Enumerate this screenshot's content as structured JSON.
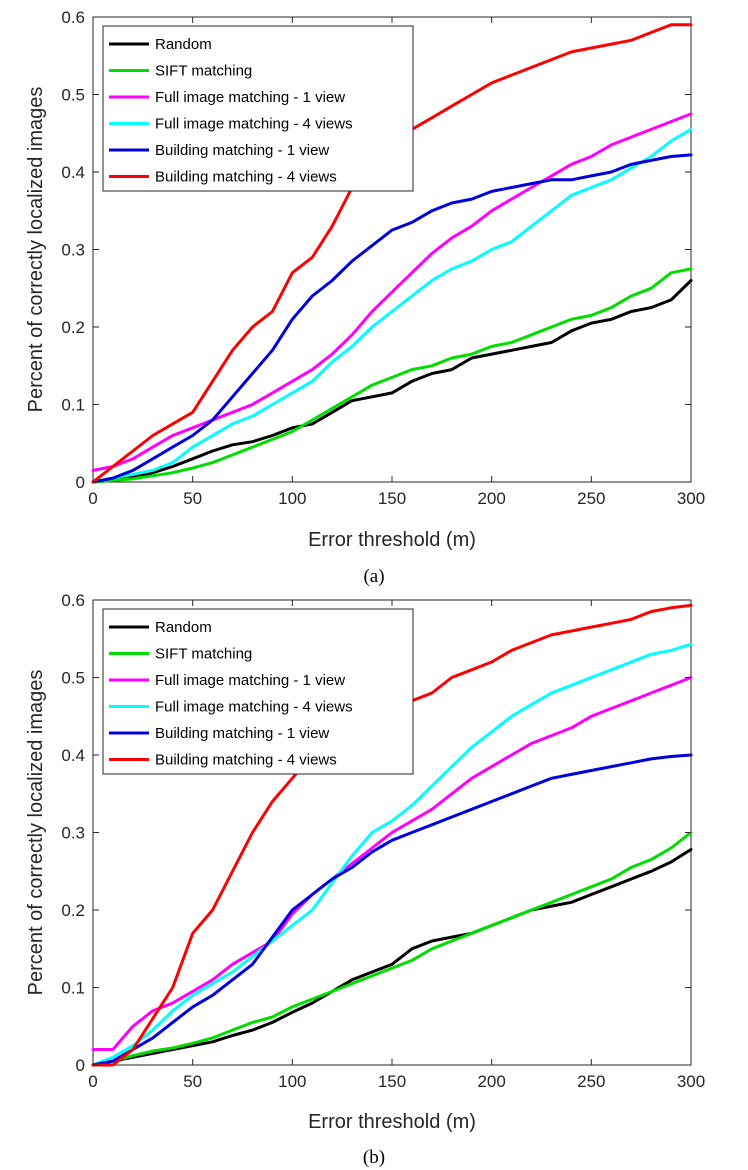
{
  "chart_data": [
    {
      "type": "line",
      "caption": "(a)",
      "xlabel": "Error threshold (m)",
      "ylabel": "Percent of correctly localized images",
      "xlim": [
        0,
        300
      ],
      "ylim": [
        0,
        0.6
      ],
      "xticks": [
        0,
        50,
        100,
        150,
        200,
        250,
        300
      ],
      "yticks": [
        0,
        0.1,
        0.2,
        0.3,
        0.4,
        0.5,
        0.6
      ],
      "grid": false,
      "legend_position": "top-left",
      "series": [
        {
          "name": "Random",
          "color": "#000000",
          "x": [
            0,
            10,
            20,
            30,
            40,
            50,
            60,
            70,
            80,
            90,
            100,
            110,
            120,
            130,
            140,
            150,
            160,
            170,
            180,
            190,
            200,
            210,
            220,
            230,
            240,
            250,
            260,
            270,
            280,
            290,
            300
          ],
          "y": [
            0,
            0.002,
            0.006,
            0.012,
            0.02,
            0.03,
            0.04,
            0.048,
            0.052,
            0.06,
            0.07,
            0.075,
            0.09,
            0.105,
            0.11,
            0.115,
            0.13,
            0.14,
            0.145,
            0.16,
            0.165,
            0.17,
            0.175,
            0.18,
            0.195,
            0.205,
            0.21,
            0.22,
            0.225,
            0.235,
            0.26
          ]
        },
        {
          "name": "SIFT matching",
          "color": "#00dd00",
          "x": [
            0,
            10,
            20,
            30,
            40,
            50,
            60,
            70,
            80,
            90,
            100,
            110,
            120,
            130,
            140,
            150,
            160,
            170,
            180,
            190,
            200,
            210,
            220,
            230,
            240,
            250,
            260,
            270,
            280,
            290,
            300
          ],
          "y": [
            0,
            0.002,
            0.004,
            0.008,
            0.012,
            0.018,
            0.025,
            0.035,
            0.045,
            0.055,
            0.065,
            0.08,
            0.095,
            0.11,
            0.125,
            0.135,
            0.145,
            0.15,
            0.16,
            0.165,
            0.175,
            0.18,
            0.19,
            0.2,
            0.21,
            0.215,
            0.225,
            0.24,
            0.25,
            0.27,
            0.275
          ]
        },
        {
          "name": "Full image matching - 1 view",
          "color": "#ff00ff",
          "x": [
            0,
            10,
            20,
            30,
            40,
            50,
            60,
            70,
            80,
            90,
            100,
            110,
            120,
            130,
            140,
            150,
            160,
            170,
            180,
            190,
            200,
            210,
            220,
            230,
            240,
            250,
            260,
            270,
            280,
            290,
            300
          ],
          "y": [
            0.015,
            0.02,
            0.03,
            0.045,
            0.06,
            0.07,
            0.08,
            0.09,
            0.1,
            0.115,
            0.13,
            0.145,
            0.165,
            0.19,
            0.22,
            0.245,
            0.27,
            0.295,
            0.315,
            0.33,
            0.35,
            0.365,
            0.38,
            0.395,
            0.41,
            0.42,
            0.435,
            0.445,
            0.455,
            0.465,
            0.475
          ]
        },
        {
          "name": "Full image matching - 4 views",
          "color": "#00ffff",
          "x": [
            0,
            10,
            20,
            30,
            40,
            50,
            60,
            70,
            80,
            90,
            100,
            110,
            120,
            130,
            140,
            150,
            160,
            170,
            180,
            190,
            200,
            210,
            220,
            230,
            240,
            250,
            260,
            270,
            280,
            290,
            300
          ],
          "y": [
            0,
            0.005,
            0.01,
            0.015,
            0.025,
            0.045,
            0.06,
            0.075,
            0.085,
            0.1,
            0.115,
            0.13,
            0.155,
            0.175,
            0.2,
            0.22,
            0.24,
            0.26,
            0.275,
            0.285,
            0.3,
            0.31,
            0.33,
            0.35,
            0.37,
            0.38,
            0.39,
            0.405,
            0.42,
            0.44,
            0.455
          ]
        },
        {
          "name": "Building matching - 1 view",
          "color": "#0000dd",
          "x": [
            0,
            10,
            20,
            30,
            40,
            50,
            60,
            70,
            80,
            90,
            100,
            110,
            120,
            130,
            140,
            150,
            160,
            170,
            180,
            190,
            200,
            210,
            220,
            230,
            240,
            250,
            260,
            270,
            280,
            290,
            300
          ],
          "y": [
            0,
            0.005,
            0.015,
            0.03,
            0.045,
            0.06,
            0.08,
            0.11,
            0.14,
            0.17,
            0.21,
            0.24,
            0.26,
            0.285,
            0.305,
            0.325,
            0.335,
            0.35,
            0.36,
            0.365,
            0.375,
            0.38,
            0.385,
            0.39,
            0.39,
            0.395,
            0.4,
            0.41,
            0.415,
            0.42,
            0.422
          ]
        },
        {
          "name": "Building matching - 4 views",
          "color": "#ff0000",
          "x": [
            0,
            10,
            20,
            30,
            40,
            50,
            60,
            70,
            80,
            90,
            100,
            110,
            120,
            130,
            140,
            150,
            160,
            170,
            180,
            190,
            200,
            210,
            220,
            230,
            240,
            250,
            260,
            270,
            280,
            290,
            300
          ],
          "y": [
            0,
            0.02,
            0.04,
            0.06,
            0.075,
            0.09,
            0.13,
            0.17,
            0.2,
            0.22,
            0.27,
            0.29,
            0.33,
            0.38,
            0.42,
            0.44,
            0.455,
            0.47,
            0.485,
            0.5,
            0.515,
            0.525,
            0.535,
            0.545,
            0.555,
            0.56,
            0.565,
            0.57,
            0.58,
            0.59,
            0.59
          ]
        }
      ]
    },
    {
      "type": "line",
      "caption": "(b)",
      "xlabel": "Error threshold (m)",
      "ylabel": "Percent of correctly localized images",
      "xlim": [
        0,
        300
      ],
      "ylim": [
        0,
        0.6
      ],
      "xticks": [
        0,
        50,
        100,
        150,
        200,
        250,
        300
      ],
      "yticks": [
        0,
        0.1,
        0.2,
        0.3,
        0.4,
        0.5,
        0.6
      ],
      "grid": false,
      "legend_position": "top-left",
      "series": [
        {
          "name": "Random",
          "color": "#000000",
          "x": [
            0,
            10,
            20,
            30,
            40,
            50,
            60,
            70,
            80,
            90,
            100,
            110,
            120,
            130,
            140,
            150,
            160,
            170,
            180,
            190,
            200,
            210,
            220,
            230,
            240,
            250,
            260,
            270,
            280,
            290,
            300
          ],
          "y": [
            0,
            0.005,
            0.01,
            0.015,
            0.02,
            0.025,
            0.03,
            0.038,
            0.045,
            0.055,
            0.068,
            0.08,
            0.095,
            0.11,
            0.12,
            0.13,
            0.15,
            0.16,
            0.165,
            0.17,
            0.18,
            0.19,
            0.2,
            0.205,
            0.21,
            0.22,
            0.23,
            0.24,
            0.25,
            0.262,
            0.278
          ]
        },
        {
          "name": "SIFT matching",
          "color": "#00dd00",
          "x": [
            0,
            10,
            20,
            30,
            40,
            50,
            60,
            70,
            80,
            90,
            100,
            110,
            120,
            130,
            140,
            150,
            160,
            170,
            180,
            190,
            200,
            210,
            220,
            230,
            240,
            250,
            260,
            270,
            280,
            290,
            300
          ],
          "y": [
            0,
            0.005,
            0.012,
            0.018,
            0.022,
            0.028,
            0.035,
            0.045,
            0.055,
            0.062,
            0.075,
            0.085,
            0.095,
            0.105,
            0.115,
            0.125,
            0.135,
            0.15,
            0.16,
            0.17,
            0.18,
            0.19,
            0.2,
            0.21,
            0.22,
            0.23,
            0.24,
            0.255,
            0.265,
            0.28,
            0.3
          ]
        },
        {
          "name": "Full image matching - 1 view",
          "color": "#ff00ff",
          "x": [
            0,
            10,
            20,
            30,
            40,
            50,
            60,
            70,
            80,
            90,
            100,
            110,
            120,
            130,
            140,
            150,
            160,
            170,
            180,
            190,
            200,
            210,
            220,
            230,
            240,
            250,
            260,
            270,
            280,
            290,
            300
          ],
          "y": [
            0.02,
            0.02,
            0.05,
            0.07,
            0.08,
            0.095,
            0.11,
            0.13,
            0.145,
            0.16,
            0.195,
            0.22,
            0.24,
            0.26,
            0.28,
            0.3,
            0.315,
            0.33,
            0.35,
            0.37,
            0.385,
            0.4,
            0.415,
            0.425,
            0.435,
            0.45,
            0.46,
            0.47,
            0.48,
            0.49,
            0.5
          ]
        },
        {
          "name": "Full image matching - 4 views",
          "color": "#00ffff",
          "x": [
            0,
            10,
            20,
            30,
            40,
            50,
            60,
            70,
            80,
            90,
            100,
            110,
            120,
            130,
            140,
            150,
            160,
            170,
            180,
            190,
            200,
            210,
            220,
            230,
            240,
            250,
            260,
            270,
            280,
            290,
            300
          ],
          "y": [
            0,
            0.01,
            0.025,
            0.045,
            0.07,
            0.09,
            0.105,
            0.12,
            0.14,
            0.16,
            0.18,
            0.2,
            0.235,
            0.27,
            0.3,
            0.315,
            0.335,
            0.36,
            0.385,
            0.41,
            0.43,
            0.45,
            0.465,
            0.48,
            0.49,
            0.5,
            0.51,
            0.52,
            0.53,
            0.535,
            0.543
          ]
        },
        {
          "name": "Building matching - 1 view",
          "color": "#0000dd",
          "x": [
            0,
            10,
            20,
            30,
            40,
            50,
            60,
            70,
            80,
            90,
            100,
            110,
            120,
            130,
            140,
            150,
            160,
            170,
            180,
            190,
            200,
            210,
            220,
            230,
            240,
            250,
            260,
            270,
            280,
            290,
            300
          ],
          "y": [
            0,
            0.005,
            0.02,
            0.035,
            0.055,
            0.075,
            0.09,
            0.11,
            0.13,
            0.165,
            0.2,
            0.22,
            0.24,
            0.255,
            0.275,
            0.29,
            0.3,
            0.31,
            0.32,
            0.33,
            0.34,
            0.35,
            0.36,
            0.37,
            0.375,
            0.38,
            0.385,
            0.39,
            0.395,
            0.398,
            0.4
          ]
        },
        {
          "name": "Building matching - 4 views",
          "color": "#ff0000",
          "x": [
            0,
            10,
            20,
            30,
            40,
            50,
            60,
            70,
            80,
            90,
            100,
            110,
            120,
            130,
            140,
            150,
            160,
            170,
            180,
            190,
            200,
            210,
            220,
            230,
            240,
            250,
            260,
            270,
            280,
            290,
            300
          ],
          "y": [
            0,
            0,
            0.02,
            0.06,
            0.1,
            0.17,
            0.2,
            0.25,
            0.3,
            0.34,
            0.37,
            0.4,
            0.41,
            0.43,
            0.445,
            0.455,
            0.47,
            0.48,
            0.5,
            0.51,
            0.52,
            0.535,
            0.545,
            0.555,
            0.56,
            0.565,
            0.57,
            0.575,
            0.585,
            0.59,
            0.593
          ]
        }
      ]
    }
  ]
}
